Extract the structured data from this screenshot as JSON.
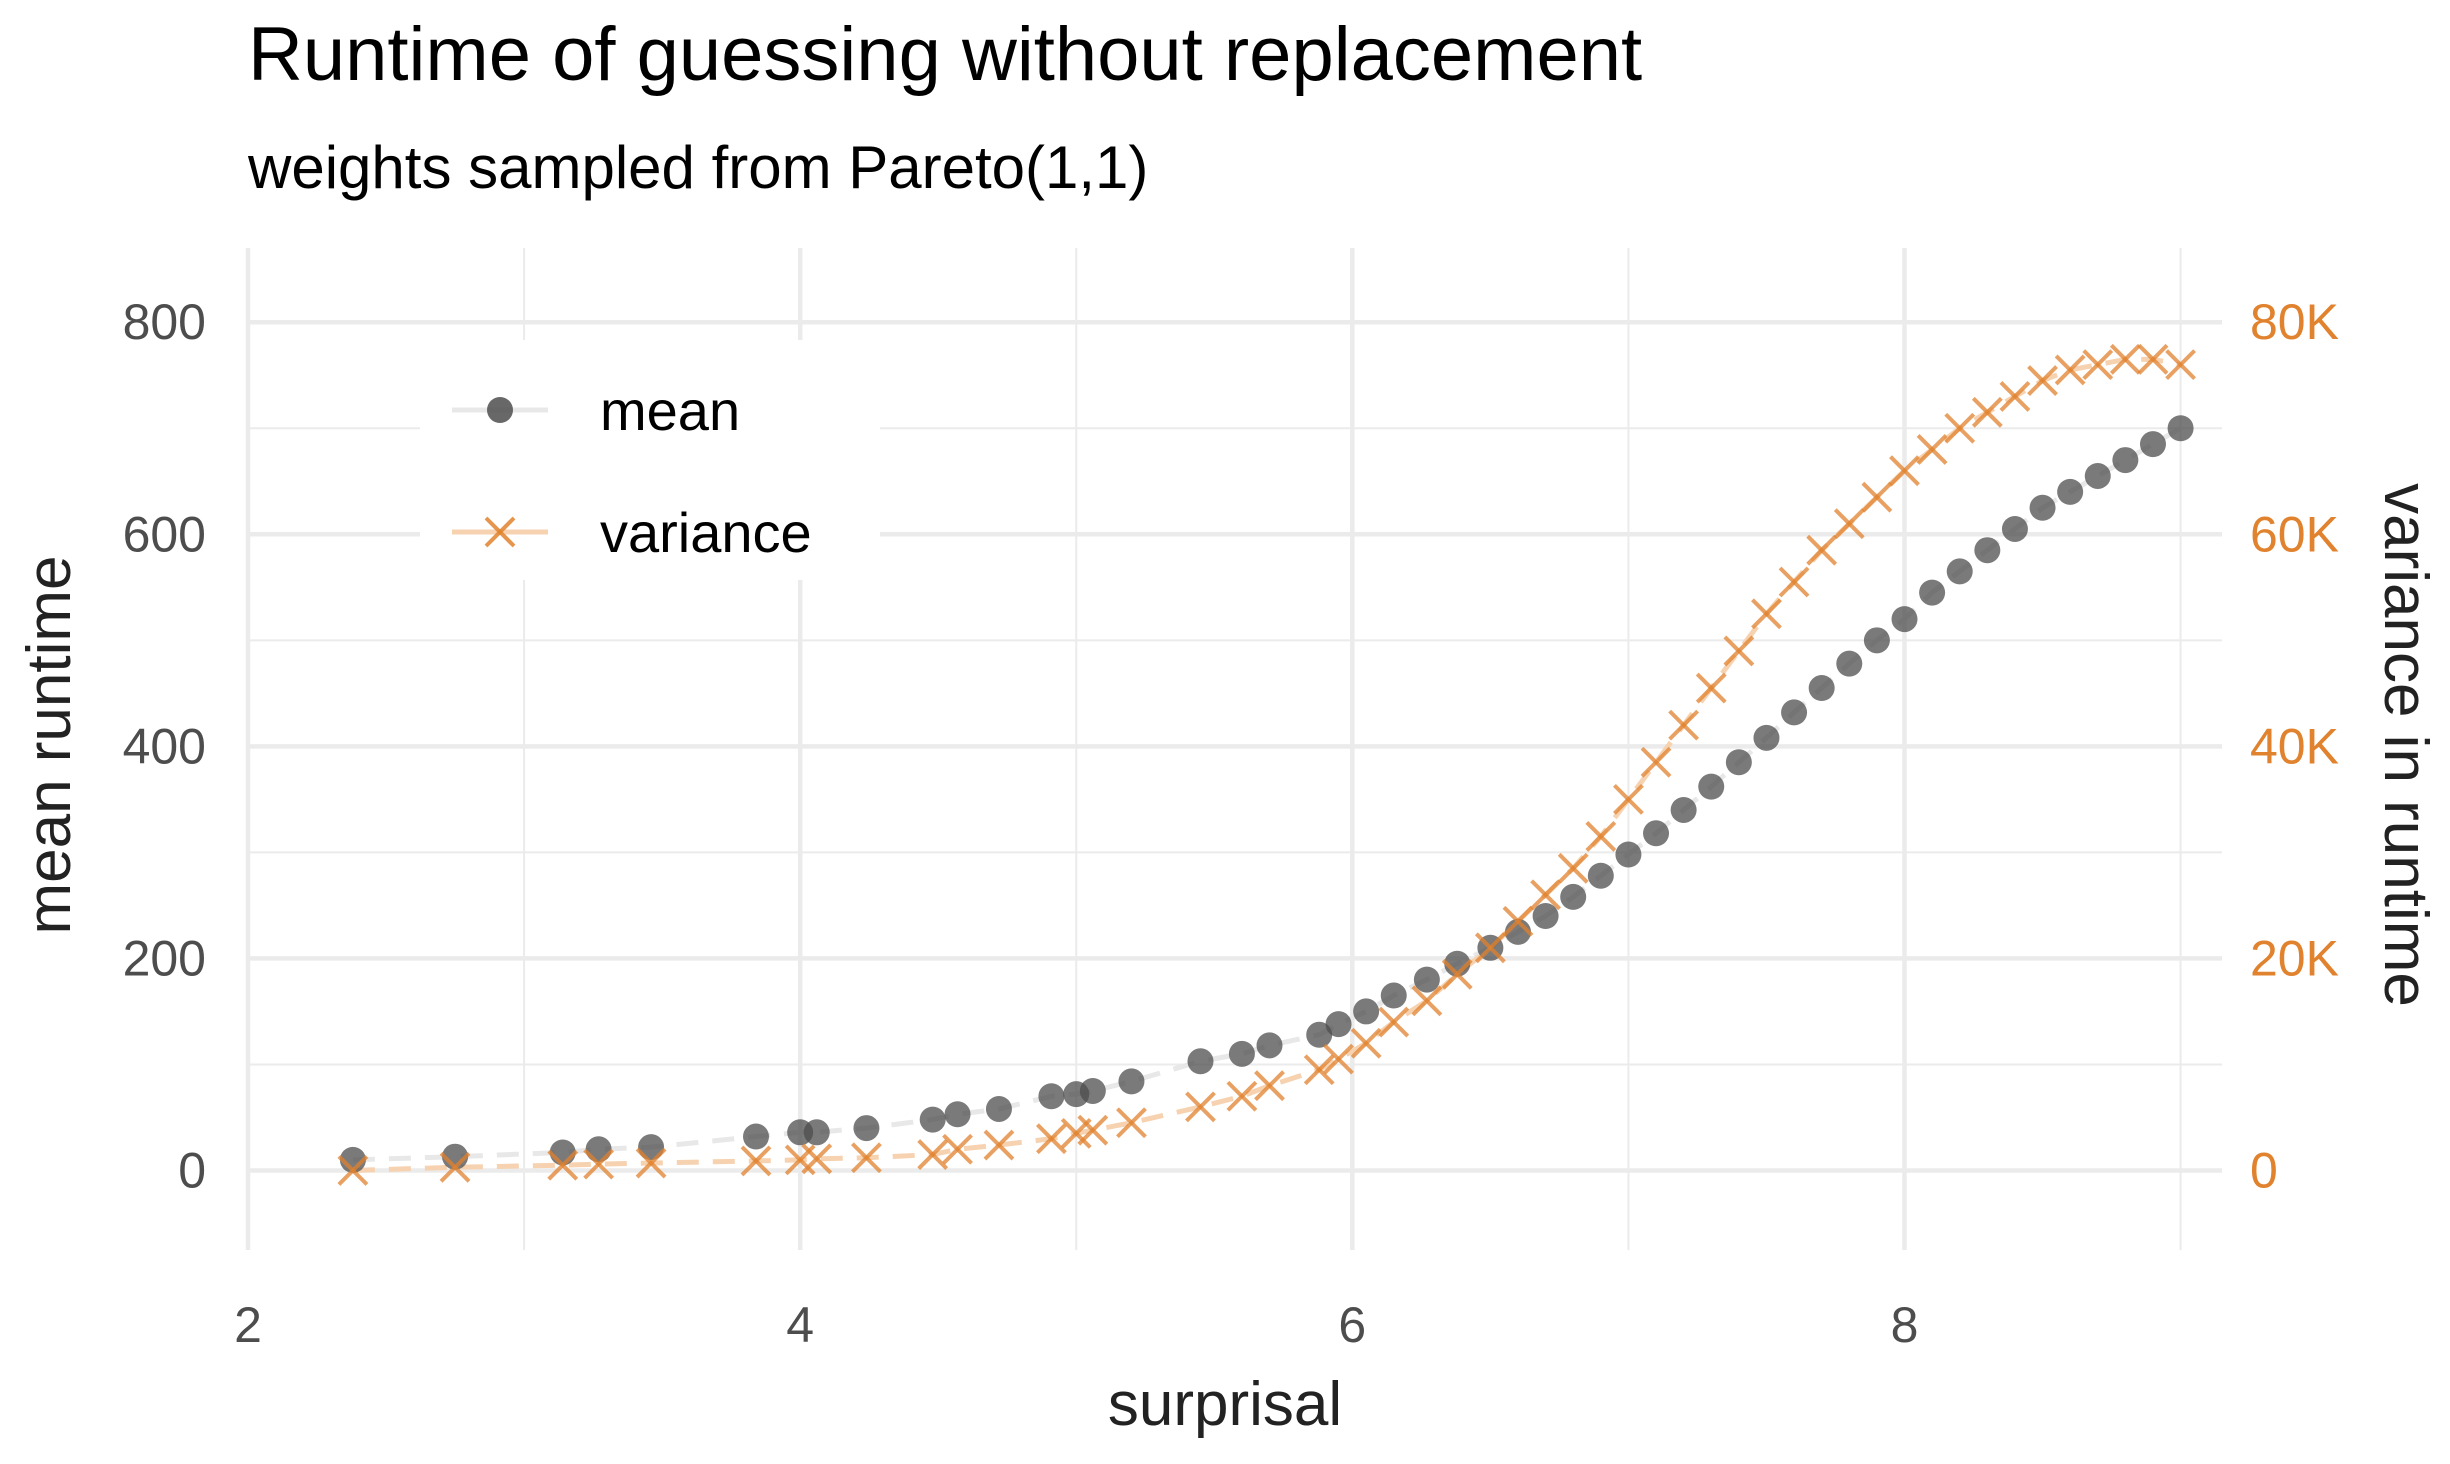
{
  "colors": {
    "mean": "#4d4d4d",
    "variance": "#e0822e",
    "grid": "#ebebeb",
    "fit": "#e8e8e8"
  },
  "chart_data": {
    "type": "scatter",
    "title": "Runtime of guessing without replacement",
    "subtitle": "weights sampled from Pareto(1,1)",
    "xlabel": "surprisal",
    "ylabel": "mean runtime",
    "y2label": "variance in runtime",
    "xlim": [
      2,
      9.15
    ],
    "ylim": [
      -75,
      870
    ],
    "y2lim": [
      -7500,
      87000
    ],
    "x_ticks": [
      "2",
      "4",
      "6",
      "8"
    ],
    "y_ticks": [
      "0",
      "200",
      "400",
      "600",
      "800"
    ],
    "y2_ticks": [
      "0",
      "20K",
      "40K",
      "60K",
      "80K"
    ],
    "grid": true,
    "legend_position": "top-left",
    "series": [
      {
        "name": "mean",
        "marker": "circle",
        "axis": "left",
        "x": [
          2.38,
          2.75,
          3.14,
          3.27,
          3.46,
          3.84,
          4.0,
          4.06,
          4.24,
          4.48,
          4.57,
          4.72,
          4.91,
          5.0,
          5.06,
          5.2,
          5.45,
          5.6,
          5.7,
          5.88,
          5.95,
          6.05,
          6.15,
          6.27,
          6.38,
          6.5,
          6.6,
          6.7,
          6.8,
          6.9,
          7.0,
          7.1,
          7.2,
          7.3,
          7.4,
          7.5,
          7.6,
          7.7,
          7.8,
          7.9,
          8.0,
          8.1,
          8.2,
          8.3,
          8.4,
          8.5,
          8.6,
          8.7,
          8.8,
          8.9,
          9.0
        ],
        "values": [
          10,
          13,
          17,
          20,
          22,
          32,
          36,
          36,
          40,
          48,
          53,
          58,
          70,
          72,
          75,
          84,
          103,
          110,
          118,
          128,
          138,
          150,
          165,
          180,
          195,
          210,
          225,
          240,
          258,
          278,
          298,
          318,
          340,
          362,
          385,
          408,
          432,
          455,
          478,
          500,
          520,
          545,
          565,
          585,
          605,
          625,
          640,
          655,
          670,
          685,
          700
        ]
      },
      {
        "name": "variance",
        "marker": "x",
        "axis": "right",
        "x": [
          2.38,
          2.75,
          3.14,
          3.27,
          3.46,
          3.84,
          4.0,
          4.06,
          4.24,
          4.48,
          4.57,
          4.72,
          4.91,
          5.0,
          5.06,
          5.2,
          5.45,
          5.6,
          5.7,
          5.88,
          5.95,
          6.05,
          6.15,
          6.27,
          6.38,
          6.5,
          6.6,
          6.7,
          6.8,
          6.9,
          7.0,
          7.1,
          7.2,
          7.3,
          7.4,
          7.5,
          7.6,
          7.7,
          7.8,
          7.9,
          8.0,
          8.1,
          8.2,
          8.3,
          8.4,
          8.5,
          8.6,
          8.7,
          8.8,
          8.9,
          9.0
        ],
        "values": [
          0,
          300,
          500,
          600,
          700,
          900,
          1000,
          1100,
          1200,
          1500,
          2000,
          2400,
          3000,
          3500,
          3800,
          4500,
          6000,
          7000,
          8000,
          9500,
          10500,
          12000,
          14000,
          16000,
          18500,
          21000,
          23500,
          26000,
          28500,
          31500,
          35000,
          38500,
          42000,
          45500,
          49000,
          52500,
          55500,
          58500,
          61000,
          63500,
          66000,
          68000,
          70000,
          71500,
          73000,
          74500,
          75500,
          76000,
          76500,
          76500,
          76000
        ]
      }
    ]
  }
}
